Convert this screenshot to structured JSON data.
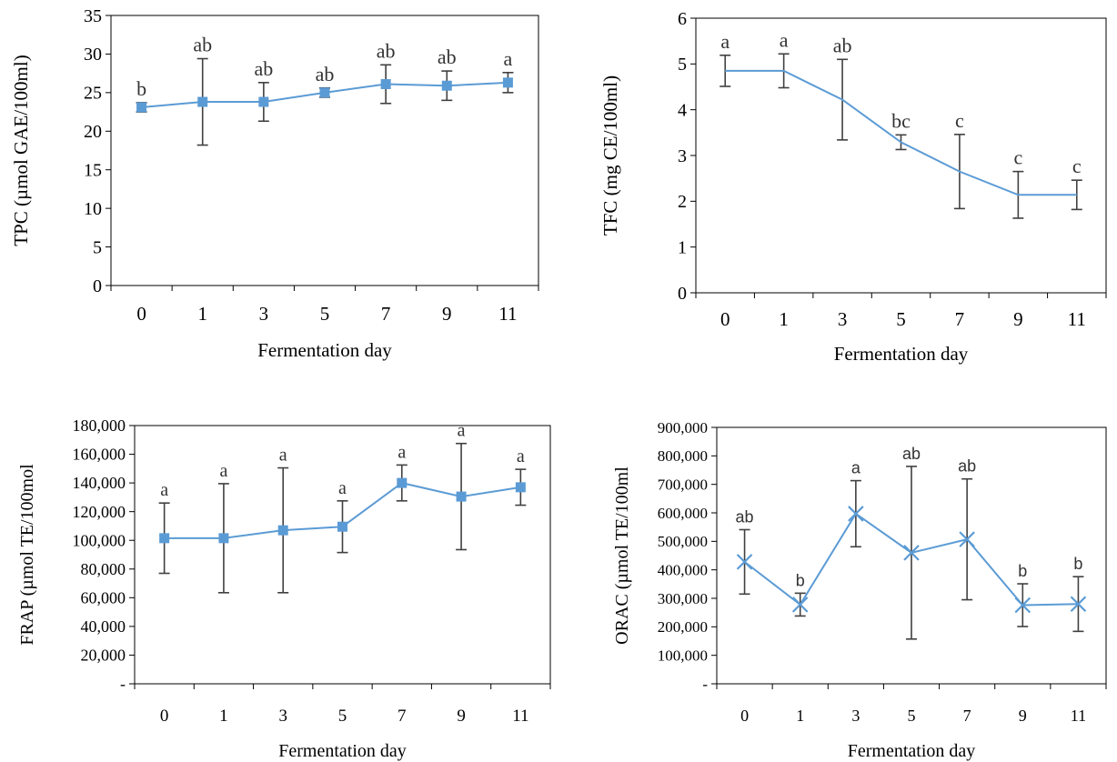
{
  "colors": {
    "series": "#5b9bd5",
    "error_bar": "#404040",
    "axis": "#000000"
  },
  "chart_data": [
    {
      "type": "line",
      "marker": "square",
      "ylabel": "TPC (µmol GAE/100ml)",
      "xlabel": "Fermentation day",
      "categories": [
        "0",
        "1",
        "3",
        "5",
        "7",
        "9",
        "11"
      ],
      "ylim": [
        0,
        35
      ],
      "yticks": [
        "0",
        "5",
        "10",
        "15",
        "20",
        "25",
        "30",
        "35"
      ],
      "values": [
        23.1,
        23.8,
        23.8,
        25.0,
        26.1,
        25.9,
        26.3
      ],
      "errors": [
        0.6,
        5.6,
        2.5,
        0.6,
        2.5,
        1.9,
        1.3
      ],
      "letters": [
        "b",
        "ab",
        "ab",
        "ab",
        "ab",
        "ab",
        "a"
      ],
      "grid": false
    },
    {
      "type": "line",
      "marker": "none",
      "ylabel": "TFC (mg CE/100ml)",
      "xlabel": "Fermentation day",
      "categories": [
        "0",
        "1",
        "3",
        "5",
        "7",
        "9",
        "11"
      ],
      "ylim": [
        0,
        6
      ],
      "yticks": [
        "0",
        "1",
        "2",
        "3",
        "4",
        "5",
        "6"
      ],
      "values": [
        4.85,
        4.85,
        4.22,
        3.29,
        2.65,
        2.14,
        2.14
      ],
      "errors": [
        0.34,
        0.37,
        0.88,
        0.16,
        0.81,
        0.51,
        0.32
      ],
      "letters": [
        "a",
        "a",
        "ab",
        "bc",
        "c",
        "c",
        "c"
      ],
      "grid": false
    },
    {
      "type": "line",
      "marker": "square",
      "ylabel": "FRAP (µmol TE/100mol",
      "xlabel": "Fermentation day",
      "categories": [
        "0",
        "1",
        "3",
        "5",
        "7",
        "9",
        "11"
      ],
      "ylim": [
        0,
        180000
      ],
      "yticks": [
        "-",
        "20,000",
        "40,000",
        "60,000",
        "80,000",
        "100,000",
        "120,000",
        "140,000",
        "160,000",
        "180,000"
      ],
      "values": [
        101500,
        101500,
        107000,
        109500,
        140000,
        130500,
        137000
      ],
      "errors": [
        24500,
        38000,
        43500,
        18000,
        12500,
        37000,
        12500
      ],
      "letters": [
        "a",
        "a",
        "a",
        "a",
        "a",
        "a",
        "a"
      ],
      "grid": false
    },
    {
      "type": "line",
      "marker": "x",
      "ylabel": "ORAC (µmol TE/100ml",
      "xlabel": "Fermentation day",
      "categories": [
        "0",
        "1",
        "3",
        "5",
        "7",
        "9",
        "11"
      ],
      "ylim": [
        0,
        900000
      ],
      "yticks": [
        "-",
        "100,000",
        "200,000",
        "300,000",
        "400,000",
        "500,000",
        "600,000",
        "700,000",
        "800,000",
        "900,000"
      ],
      "values": [
        428000,
        278000,
        597000,
        460000,
        507000,
        276000,
        280000
      ],
      "errors": [
        113000,
        40000,
        116000,
        303000,
        212000,
        75000,
        96000
      ],
      "letters": [
        "ab",
        "b",
        "a",
        "ab",
        "ab",
        "b",
        "b"
      ],
      "grid": false
    }
  ]
}
